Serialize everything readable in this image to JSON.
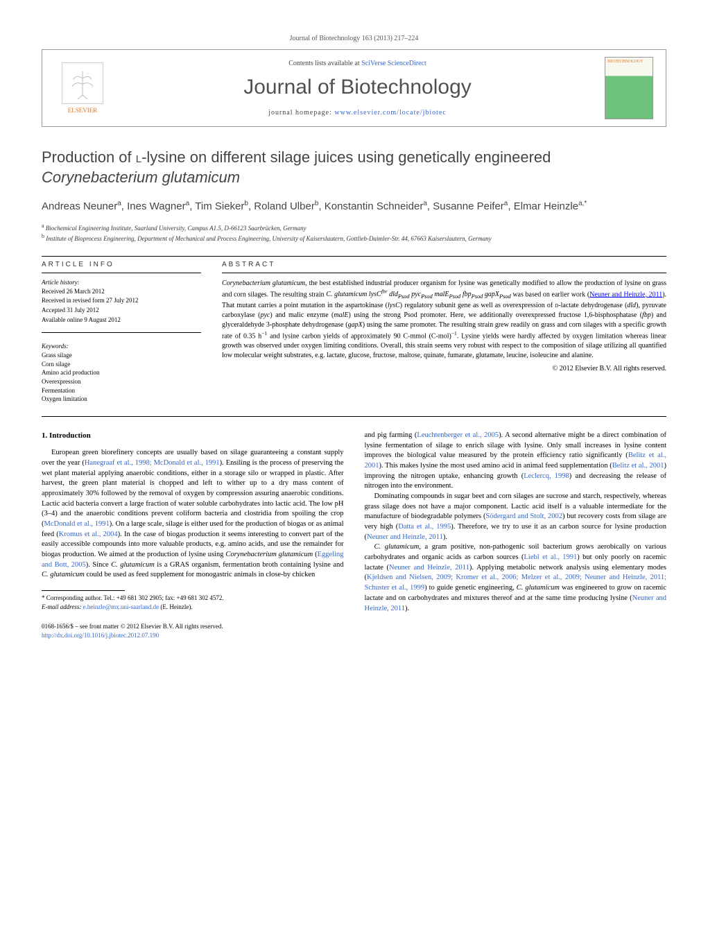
{
  "journal_ref": "Journal of Biotechnology 163 (2013) 217–224",
  "header": {
    "contents_prefix": "Contents lists available at ",
    "contents_link": "SciVerse ScienceDirect",
    "journal_title": "Journal of Biotechnology",
    "homepage_prefix": "journal homepage: ",
    "homepage_link": "www.elsevier.com/locate/jbiotec",
    "publisher": "ELSEVIER",
    "cover_title": "BIOTECHNOLOGY"
  },
  "title_html": "Production of <span class='smallcaps'>l</span>-lysine on different silage juices using genetically engineered <em>Corynebacterium glutamicum</em>",
  "authors_html": "Andreas Neuner<sup>a</sup>, Ines Wagner<sup>a</sup>, Tim Sieker<sup>b</sup>, Roland Ulber<sup>b</sup>, Konstantin Schneider<sup>a</sup>, Susanne Peifer<sup>a</sup>, Elmar Heinzle<sup>a,*</sup>",
  "affiliations": [
    "a Biochemical Engineering Institute, Saarland University, Campus A1.5, D-66123 Saarbrücken, Germany",
    "b Institute of Bioprocess Engineering, Department of Mechanical and Process Engineering, University of Kaiserslautern, Gottlieb-Daimler-Str. 44, 67663 Kaiserslautern, Germany"
  ],
  "info_heading": "article info",
  "abstract_heading": "abstract",
  "history": {
    "label": "Article history:",
    "lines": [
      "Received 26 March 2012",
      "Received in revised form 27 July 2012",
      "Accepted 31 July 2012",
      "Available online 9 August 2012"
    ]
  },
  "keywords": {
    "label": "Keywords:",
    "items": [
      "Grass silage",
      "Corn silage",
      "Amino acid production",
      "Overexpression",
      "Fermentation",
      "Oxygen limitation"
    ]
  },
  "abstract_html": "<em>Corynebacterium glutamicum</em>, the best established industrial producer organism for lysine was genetically modified to allow the production of lysine on grass and corn silages. The resulting strain <em>C. glutamicum lysC<sup>fbr</sup> dld<sub>Psod</sub> pyc<sub>Psod</sub> malE<sub>Psod</sub> fbp<sub>Psod</sub> gapX<sub>Psod</sub></em> was based on earlier work (<a href='#'>Neuner and Heinzle, 2011</a>). That mutant carries a point mutation in the aspartokinase (<em>lysC</em>) regulatory subunit gene as well as overexpression of <span class='smallcaps'>d</span>-lactate dehydrogenase (<em>dld</em>), pyruvate carboxylase (<em>pyc</em>) and malic enzyme (<em>malE</em>) using the strong Psod promoter. Here, we additionally overexpressed fructose 1,6-bisphosphatase (<em>fbp</em>) and glyceraldehyde 3-phosphate dehydrogenase (<em>gapX</em>) using the same promoter. The resulting strain grew readily on grass and corn silages with a specific growth rate of 0.35 h<sup>−1</sup> and lysine carbon yields of approximately 90 C-mmol (C-mol)<sup>−1</sup>. Lysine yields were hardly affected by oxygen limitation whereas linear growth was observed under oxygen limiting conditions. Overall, this strain seems very robust with respect to the composition of silage utilizing all quantified low molecular weight substrates, e.g. lactate, glucose, fructose, maltose, quinate, fumarate, glutamate, leucine, isoleucine and alanine.",
  "copyright": "© 2012 Elsevier B.V. All rights reserved.",
  "section1_heading": "1.  Introduction",
  "col1_html": "<p class='para'>European green biorefinery concepts are usually based on silage guaranteeing a constant supply over the year (<a href='#'>Hanegraaf et al., 1998; McDonald et al., 1991</a>). Ensiling is the process of preserving the wet plant material applying anaerobic conditions, either in a storage silo or wrapped in plastic. After harvest, the green plant material is chopped and left to wither up to a dry mass content of approximately 30% followed by the removal of oxygen by compression assuring anaerobic conditions. Lactic acid bacteria convert a large fraction of water soluble carbohydrates into lactic acid. The low pH (3–4) and the anaerobic conditions prevent coliform bacteria and clostridia from spoiling the crop (<a href='#'>McDonald et al., 1991</a>). On a large scale, silage is either used for the production of biogas or as animal feed (<a href='#'>Kromus et al., 2004</a>). In the case of biogas production it seems interesting to convert part of the easily accessible compounds into more valuable products, e.g. amino acids, and use the remainder for biogas production. We aimed at the production of lysine using <em>Corynebacterium glutamicum</em> (<a href='#'>Eggeling and Bott, 2005</a>). Since <em>C. glutamicum</em> is a GRAS organism, fermentation broth containing lysine and <em>C. glutamicum</em> could be used as feed supplement for monogastric animals in close-by chicken</p>",
  "col2_html": "<p class='para' style='text-indent:0'>and pig farming (<a href='#'>Leuchtenberger et al., 2005</a>). A second alternative might be a direct combination of lysine fermentation of silage to enrich silage with lysine. Only small increases in lysine content improves the biological value measured by the protein efficiency ratio significantly (<a href='#'>Belitz et al., 2001</a>). This makes lysine the most used amino acid in animal feed supplementation (<a href='#'>Belitz et al., 2001</a>) improving the nitrogen uptake, enhancing growth (<a href='#'>Leclercq, 1998</a>) and decreasing the release of nitrogen into the environment.</p><p class='para'>Dominating compounds in sugar beet and corn silages are sucrose and starch, respectively, whereas grass silage does not have a major component. Lactic acid itself is a valuable intermediate for the manufacture of biodegradable polymers (<a href='#'>Södergard and Stolt, 2002</a>) but recovery costs from silage are very high (<a href='#'>Datta et al., 1995</a>). Therefore, we try to use it as an carbon source for lysine production (<a href='#'>Neuner and Heinzle, 2011</a>).</p><p class='para'><em>C. glutamicum</em>, a gram positive, non-pathogenic soil bacterium grows aerobically on various carbohydrates and organic acids as carbon sources (<a href='#'>Liebl et al., 1991</a>) but only poorly on racemic lactate (<a href='#'>Neuner and Heinzle, 2011</a>). Applying metabolic network analysis using elementary modes (<a href='#'>Kjeldsen and Nielsen, 2009; Kromer et al., 2006; Melzer et al., 2009; Neuner and Heinzle, 2011; Schuster et al., 1999</a>) to guide genetic engineering, <em>C. glutamicum</em> was engineered to grow on racemic lactate and on carbohydrates and mixtures thereof and at the same time producing lysine (<a href='#'>Neuner and Heinzle, 2011</a>).</p>",
  "footnotes": {
    "corresponding": "* Corresponding author. Tel.: +49 681 302 2905; fax: +49 681 302 4572.",
    "email_label": "E-mail address:",
    "email": "e.heinzle@mx.uni-saarland.de",
    "email_suffix": " (E. Heinzle)."
  },
  "bottom": {
    "line1": "0168-1656/$ – see front matter © 2012 Elsevier B.V. All rights reserved.",
    "doi": "http://dx.doi.org/10.1016/j.jbiotec.2012.07.190"
  },
  "colors": {
    "link": "#3366cc",
    "text": "#000000",
    "heading_gray": "#505050",
    "elsevier_orange": "#e9711c"
  }
}
